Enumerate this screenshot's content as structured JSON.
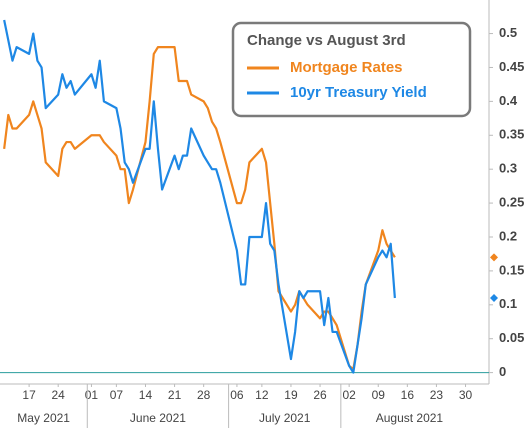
{
  "chart_data": {
    "type": "line",
    "legend_title": "Change vs August 3rd",
    "legend_position": "top-right",
    "x": [
      "2021-05-11",
      "2021-05-12",
      "2021-05-13",
      "2021-05-14",
      "2021-05-17",
      "2021-05-18",
      "2021-05-19",
      "2021-05-20",
      "2021-05-21",
      "2021-05-24",
      "2021-05-25",
      "2021-05-26",
      "2021-05-27",
      "2021-05-28",
      "2021-06-01",
      "2021-06-02",
      "2021-06-03",
      "2021-06-04",
      "2021-06-07",
      "2021-06-08",
      "2021-06-09",
      "2021-06-10",
      "2021-06-11",
      "2021-06-14",
      "2021-06-15",
      "2021-06-16",
      "2021-06-17",
      "2021-06-18",
      "2021-06-21",
      "2021-06-22",
      "2021-06-23",
      "2021-06-24",
      "2021-06-25",
      "2021-06-28",
      "2021-06-29",
      "2021-06-30",
      "2021-07-01",
      "2021-07-02",
      "2021-07-06",
      "2021-07-07",
      "2021-07-08",
      "2021-07-09",
      "2021-07-12",
      "2021-07-13",
      "2021-07-14",
      "2021-07-15",
      "2021-07-16",
      "2021-07-19",
      "2021-07-20",
      "2021-07-21",
      "2021-07-22",
      "2021-07-23",
      "2021-07-26",
      "2021-07-27",
      "2021-07-28",
      "2021-07-29",
      "2021-07-30",
      "2021-08-02",
      "2021-08-03",
      "2021-08-04",
      "2021-08-05",
      "2021-08-06",
      "2021-08-09",
      "2021-08-10",
      "2021-08-11",
      "2021-08-12",
      "2021-08-13"
    ],
    "series": [
      {
        "name": "Mortgage Rates",
        "color": "#f0851e",
        "values": [
          0.33,
          0.38,
          0.36,
          0.36,
          0.38,
          0.4,
          0.38,
          0.36,
          0.31,
          0.29,
          0.33,
          0.34,
          0.34,
          0.33,
          0.35,
          0.35,
          0.35,
          0.34,
          0.32,
          0.3,
          0.3,
          0.25,
          0.27,
          0.34,
          0.4,
          0.47,
          0.48,
          0.48,
          0.48,
          0.43,
          0.43,
          0.43,
          0.41,
          0.4,
          0.39,
          0.37,
          0.36,
          0.34,
          0.25,
          0.25,
          0.27,
          0.31,
          0.33,
          0.31,
          0.25,
          0.19,
          0.12,
          0.09,
          0.1,
          0.12,
          0.11,
          0.1,
          0.08,
          0.09,
          0.09,
          0.08,
          0.07,
          0.01,
          0.005,
          0.04,
          0.09,
          0.13,
          0.18,
          0.21,
          0.19,
          0.18,
          0.17
        ]
      },
      {
        "name": "10yr Treasury Yield",
        "color": "#1e88e5",
        "values": [
          0.52,
          0.49,
          0.46,
          0.48,
          0.47,
          0.5,
          0.46,
          0.45,
          0.39,
          0.41,
          0.44,
          0.42,
          0.43,
          0.41,
          0.44,
          0.42,
          0.46,
          0.4,
          0.39,
          0.36,
          0.31,
          0.3,
          0.28,
          0.33,
          0.33,
          0.4,
          0.33,
          0.27,
          0.32,
          0.3,
          0.32,
          0.32,
          0.36,
          0.32,
          0.31,
          0.3,
          0.3,
          0.28,
          0.18,
          0.13,
          0.13,
          0.2,
          0.2,
          0.25,
          0.19,
          0.18,
          0.13,
          0.02,
          0.06,
          0.12,
          0.11,
          0.12,
          0.12,
          0.07,
          0.11,
          0.06,
          0.06,
          0.01,
          0.0,
          0.04,
          0.08,
          0.13,
          0.17,
          0.18,
          0.17,
          0.19,
          0.11
        ]
      }
    ],
    "xlim": [
      "2021-05-10",
      "2021-09-02"
    ],
    "xticks": [
      {
        "value": "2021-05-17",
        "label": "17"
      },
      {
        "value": "2021-05-24",
        "label": "24"
      },
      {
        "value": "2021-06-01",
        "label": "01"
      },
      {
        "value": "2021-06-07",
        "label": "07"
      },
      {
        "value": "2021-06-14",
        "label": "14"
      },
      {
        "value": "2021-06-21",
        "label": "21"
      },
      {
        "value": "2021-06-28",
        "label": "28"
      },
      {
        "value": "2021-07-06",
        "label": "06"
      },
      {
        "value": "2021-07-12",
        "label": "12"
      },
      {
        "value": "2021-07-19",
        "label": "19"
      },
      {
        "value": "2021-07-26",
        "label": "26"
      },
      {
        "value": "2021-08-02",
        "label": "02"
      },
      {
        "value": "2021-08-09",
        "label": "09"
      },
      {
        "value": "2021-08-16",
        "label": "16"
      },
      {
        "value": "2021-08-23",
        "label": "23"
      },
      {
        "value": "2021-08-30",
        "label": "30"
      }
    ],
    "x_groups": [
      {
        "label": "May 2021",
        "from": "2021-05-10",
        "to": "2021-05-31"
      },
      {
        "label": "June 2021",
        "from": "2021-05-31",
        "to": "2021-07-04"
      },
      {
        "label": "July 2021",
        "from": "2021-07-04",
        "to": "2021-07-31"
      },
      {
        "label": "August 2021",
        "from": "2021-07-31",
        "to": "2021-09-02"
      }
    ],
    "ylim": [
      -0.005,
      0.52
    ],
    "yticks": [
      0,
      0.05,
      0.1,
      0.15,
      0.2,
      0.25,
      0.3,
      0.35,
      0.4,
      0.45,
      0.5
    ],
    "zero_line_color": "#2a9d9d",
    "grid": false
  }
}
